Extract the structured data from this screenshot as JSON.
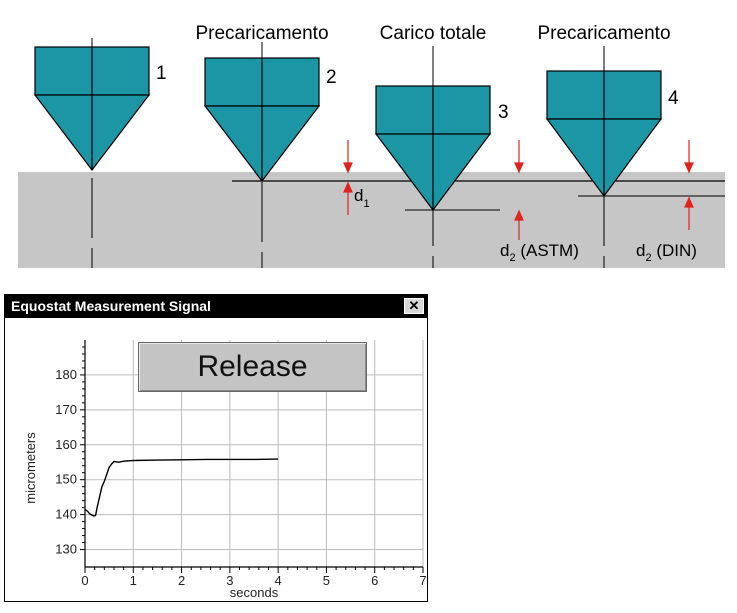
{
  "diagram": {
    "steps": [
      {
        "number": "1",
        "heading": ""
      },
      {
        "number": "2",
        "heading": "Precaricamento"
      },
      {
        "number": "3",
        "heading": "Carico totale"
      },
      {
        "number": "4",
        "heading": "Precaricamento"
      }
    ],
    "labels": {
      "d1_main": "d",
      "d1_sub": "1",
      "d2_astm_main": "d",
      "d2_astm_sub": "2",
      "d2_astm_suffix": " (ASTM)",
      "d2_din_main": "d",
      "d2_din_sub": "2",
      "d2_din_suffix": " (DIN)"
    },
    "colors": {
      "indenter": "#1c96a4",
      "specimen": "#c6c6c6",
      "arrow": "#e0231d"
    }
  },
  "window": {
    "title": "Equostat Measurement Signal",
    "close_icon": "close-icon",
    "release_label": "Release"
  },
  "chart_data": {
    "type": "line",
    "xlabel": "seconds",
    "ylabel": "micrometers",
    "xlim": [
      0,
      7
    ],
    "ylim": [
      125,
      190
    ],
    "x_ticks": [
      "0",
      "1",
      "2",
      "3",
      "4",
      "5",
      "6",
      "7"
    ],
    "y_ticks": [
      "130",
      "140",
      "150",
      "160",
      "170",
      "180"
    ],
    "grid": true,
    "series": [
      {
        "name": "",
        "points": [
          [
            0.0,
            141.5
          ],
          [
            0.05,
            141.0
          ],
          [
            0.1,
            140.2
          ],
          [
            0.18,
            139.6
          ],
          [
            0.22,
            139.8
          ],
          [
            0.25,
            142.0
          ],
          [
            0.3,
            145.0
          ],
          [
            0.35,
            148.0
          ],
          [
            0.4,
            149.5
          ],
          [
            0.45,
            151.5
          ],
          [
            0.5,
            153.5
          ],
          [
            0.55,
            154.5
          ],
          [
            0.6,
            155.2
          ],
          [
            0.7,
            155.0
          ],
          [
            0.8,
            155.3
          ],
          [
            1.0,
            155.5
          ],
          [
            1.5,
            155.6
          ],
          [
            2.0,
            155.7
          ],
          [
            2.5,
            155.8
          ],
          [
            3.0,
            155.8
          ],
          [
            3.5,
            155.8
          ],
          [
            4.0,
            155.9
          ]
        ]
      }
    ]
  }
}
